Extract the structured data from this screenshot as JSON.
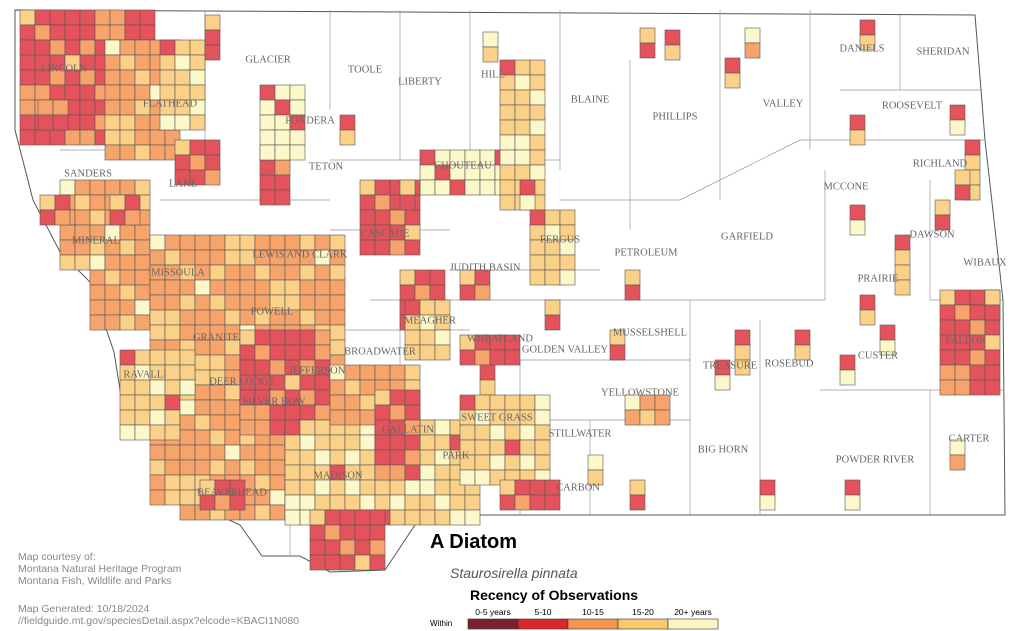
{
  "map": {
    "counties": [
      "GLACIER",
      "TOOLE",
      "LIBERTY",
      "HILL",
      "BLAINE",
      "PHILLIPS",
      "VALLEY",
      "DANIELS",
      "SHERIDAN",
      "ROOSEVELT",
      "LINCOLN",
      "FLATHEAD",
      "PONDERA",
      "TETON",
      "CHOUTEAU",
      "RICHLAND",
      "MCCONE",
      "SANDERS",
      "LAKE",
      "MINERAL",
      "CASCADE",
      "FERGUS",
      "PETROLEUM",
      "GARFIELD",
      "DAWSON",
      "WIBAUX",
      "MISSOULA",
      "LEWIS AND CLARK",
      "JUDITH BASIN",
      "PRAIRIE",
      "POWELL",
      "MEAGHER",
      "WHEATLAND",
      "GOLDEN VALLEY",
      "MUSSELSHELL",
      "GRANITE",
      "BROADWATER",
      "FALLON",
      "CUSTER",
      "RAVALLI",
      "DEER LODGE",
      "JEFFERSON",
      "TREASURE",
      "ROSEBUD",
      "SILVER BOW",
      "YELLOWSTONE",
      "SWEET GRASS",
      "STILLWATER",
      "GALLATIN",
      "PARK",
      "BIG HORN",
      "CARTER",
      "POWDER RIVER",
      "MADISON",
      "CARBON",
      "BEAVERHEAD"
    ],
    "title": "A Diatom",
    "subtitle": "Staurosirella pinnata",
    "legend": {
      "title": "Recency of Observations",
      "within": "Within",
      "items": [
        "0-5 years",
        "5-10",
        "10-15",
        "15-20",
        "20+ years"
      ]
    },
    "credits": [
      "Map courtesy of:",
      "Montana Natural Heritage Program",
      "Montana Fish, Wildlife and Parks"
    ],
    "generated": "Map Generated: 10/18/2024",
    "url": "//fieldguide.mt.gov/speciesDetail.aspx?elcode=KBACI1N080"
  }
}
